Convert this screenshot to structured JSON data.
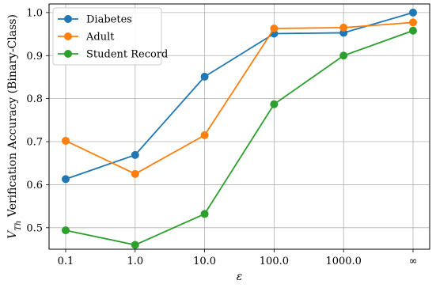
{
  "chart_data": {
    "type": "line",
    "title": "",
    "xlabel": "ε",
    "ylabel": "V_Th Verification Accuracy (Binary-Class)",
    "ylabel_subscript": "Th",
    "ylabel_main": "V",
    "ylabel_rest": " Verification Accuracy (Binary-Class)",
    "categories": [
      "0.1",
      "1.0",
      "10.0",
      "100.0",
      "1000.0",
      "∞"
    ],
    "ylim": [
      0.45,
      1.02
    ],
    "yticks": [
      0.5,
      0.6,
      0.7,
      0.8,
      0.9,
      1.0
    ],
    "ytick_labels": [
      "0.5",
      "0.6",
      "0.7",
      "0.8",
      "0.9",
      "1.0"
    ],
    "grid": true,
    "legend_position": "top-left",
    "series": [
      {
        "name": "Diabetes",
        "color": "#1f77b4",
        "values": [
          0.613,
          0.669,
          0.851,
          0.951,
          0.953,
          1.0
        ]
      },
      {
        "name": "Adult",
        "color": "#ff7f0e",
        "values": [
          0.702,
          0.625,
          0.715,
          0.963,
          0.965,
          0.977
        ]
      },
      {
        "name": "Student Record",
        "color": "#2ca02c",
        "values": [
          0.494,
          0.46,
          0.532,
          0.787,
          0.9,
          0.958
        ]
      }
    ]
  }
}
